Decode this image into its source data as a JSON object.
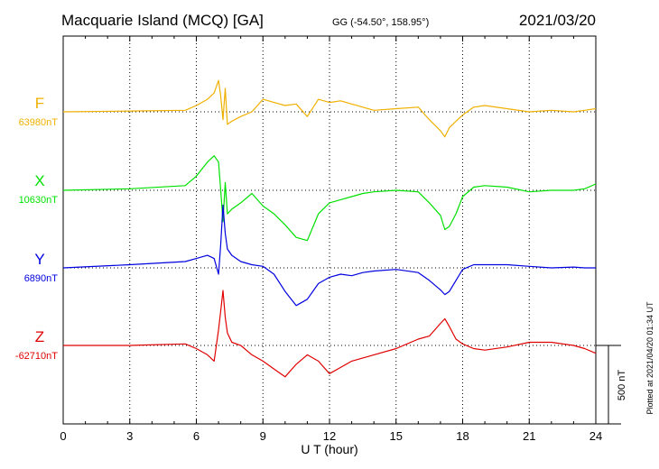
{
  "header": {
    "station": "Macquarie Island (MCQ)  [GA]",
    "coords": "GG (-54.50°, 158.95°)",
    "date": "2021/03/20"
  },
  "footer": {
    "plotted": "Plotted at 2021/04/20 01:34  UT"
  },
  "colors": {
    "F": "#f0b000",
    "X": "#00e000",
    "Y": "#0000e0",
    "Z": "#e00000"
  },
  "chart_data": {
    "type": "line",
    "xlabel": "U T (hour)",
    "xlim": [
      0,
      24
    ],
    "xticks": [
      0,
      3,
      6,
      9,
      12,
      15,
      18,
      21,
      24
    ],
    "xtick_labels": [
      "0",
      "3",
      "6",
      "9",
      "12",
      "15",
      "18",
      "21",
      "24"
    ],
    "scale_bar_label": "500 nT",
    "scale_bar_nT": 500,
    "grid": true,
    "series": [
      {
        "name": "F",
        "baseline_label": "63980nT",
        "color": "#f0b000",
        "x": [
          0,
          3,
          5.5,
          6,
          6.5,
          6.8,
          7.0,
          7.1,
          7.2,
          7.3,
          7.4,
          7.6,
          8.0,
          8.5,
          9.0,
          9.5,
          10.0,
          10.5,
          11.0,
          11.5,
          12.0,
          12.5,
          13.0,
          13.5,
          14.0,
          15.0,
          16.0,
          16.5,
          17.0,
          17.2,
          17.4,
          17.7,
          18.0,
          18.5,
          19.0,
          20.0,
          21.0,
          22.0,
          23.0,
          23.5,
          24.0
        ],
        "values": [
          0,
          5,
          10,
          40,
          80,
          120,
          200,
          100,
          -50,
          150,
          -80,
          -60,
          -30,
          0,
          80,
          60,
          40,
          50,
          -30,
          80,
          60,
          70,
          50,
          30,
          10,
          20,
          30,
          -50,
          -120,
          -160,
          -100,
          -60,
          -20,
          30,
          40,
          20,
          0,
          10,
          0,
          10,
          20
        ]
      },
      {
        "name": "X",
        "baseline_label": "10630nT",
        "color": "#00e000",
        "x": [
          0,
          3,
          5.5,
          6,
          6.5,
          6.8,
          7.0,
          7.1,
          7.2,
          7.3,
          7.4,
          7.6,
          8.0,
          8.5,
          9.0,
          9.5,
          10.0,
          10.5,
          11.0,
          11.5,
          12.0,
          12.5,
          13.0,
          13.5,
          14.0,
          15.0,
          16.0,
          16.5,
          17.0,
          17.2,
          17.4,
          17.7,
          18.0,
          18.5,
          19.0,
          20.0,
          21.0,
          22.0,
          23.0,
          23.5,
          24.0
        ],
        "values": [
          0,
          10,
          30,
          90,
          180,
          220,
          180,
          0,
          -200,
          50,
          -150,
          -120,
          -80,
          -20,
          -100,
          -150,
          -220,
          -300,
          -320,
          -150,
          -80,
          -60,
          -40,
          -20,
          -10,
          0,
          -10,
          -80,
          -160,
          -250,
          -230,
          -150,
          -40,
          20,
          30,
          20,
          -10,
          0,
          0,
          10,
          40
        ]
      },
      {
        "name": "Y",
        "baseline_label": "6890nT",
        "color": "#0000e0",
        "x": [
          0,
          3,
          5.5,
          6,
          6.5,
          6.8,
          7.0,
          7.1,
          7.2,
          7.3,
          7.4,
          7.6,
          8.0,
          8.5,
          9.0,
          9.5,
          10.0,
          10.5,
          11.0,
          11.5,
          12.0,
          12.5,
          13.0,
          13.5,
          14.0,
          15.0,
          16.0,
          16.5,
          17.0,
          17.2,
          17.4,
          17.7,
          18.0,
          18.5,
          19.0,
          20.0,
          21.0,
          22.0,
          23.0,
          23.5,
          24.0
        ],
        "values": [
          0,
          20,
          40,
          60,
          80,
          60,
          -40,
          150,
          400,
          220,
          120,
          80,
          40,
          20,
          10,
          -40,
          -150,
          -240,
          -200,
          -100,
          -60,
          -40,
          -50,
          -30,
          -20,
          -10,
          -30,
          -80,
          -140,
          -170,
          -150,
          -80,
          -10,
          20,
          20,
          20,
          10,
          0,
          5,
          0,
          0
        ]
      },
      {
        "name": "Z",
        "baseline_label": "-62710nT",
        "color": "#e00000",
        "x": [
          0,
          3,
          5.5,
          6,
          6.5,
          6.8,
          7.0,
          7.1,
          7.2,
          7.3,
          7.4,
          7.6,
          8.0,
          8.5,
          9.0,
          9.5,
          10.0,
          10.5,
          11.0,
          11.5,
          12.0,
          12.5,
          13.0,
          13.5,
          14.0,
          15.0,
          16.0,
          16.5,
          17.0,
          17.2,
          17.4,
          17.7,
          18.0,
          18.5,
          19.0,
          20.0,
          21.0,
          22.0,
          23.0,
          23.5,
          24.0
        ],
        "values": [
          0,
          0,
          10,
          -20,
          -60,
          -100,
          100,
          220,
          350,
          180,
          80,
          20,
          0,
          -60,
          -100,
          -150,
          -200,
          -120,
          -60,
          -100,
          -180,
          -140,
          -100,
          -80,
          -60,
          -20,
          40,
          60,
          140,
          170,
          120,
          40,
          10,
          -20,
          -30,
          -10,
          20,
          20,
          0,
          -20,
          -50
        ]
      }
    ]
  }
}
